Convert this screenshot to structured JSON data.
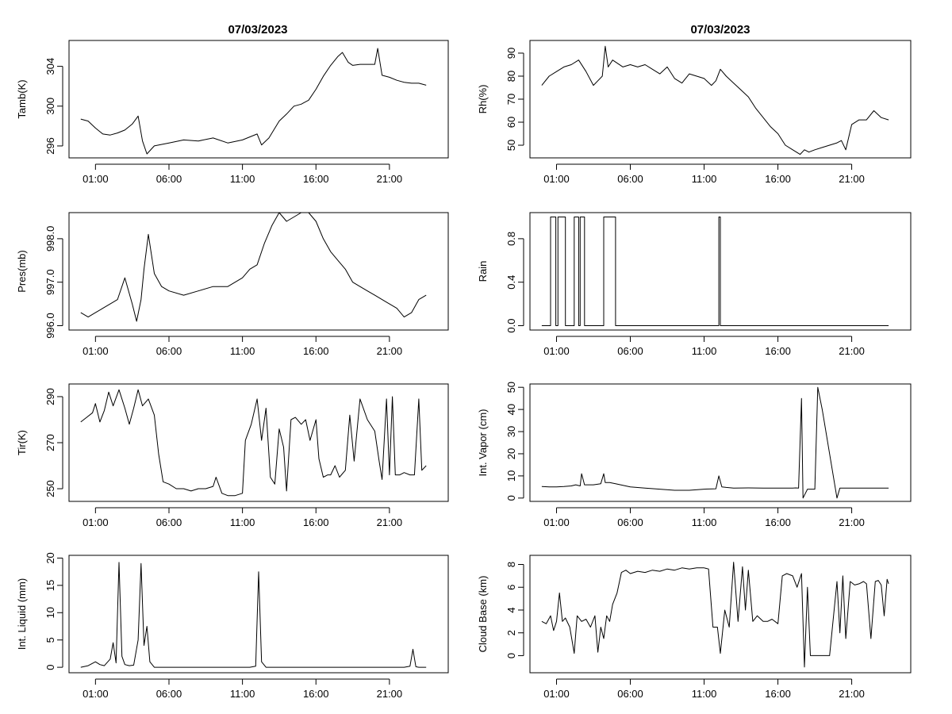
{
  "figure": {
    "titles": [
      "07/03/2023",
      "07/03/2023"
    ]
  },
  "chart_data": [
    {
      "type": "line",
      "id": "tamb",
      "ylabel": "Tamb(K)",
      "xlim": [
        -0.8,
        25
      ],
      "ylim": [
        294.8,
        306.6
      ],
      "xticks": [
        1,
        6,
        11,
        16,
        21
      ],
      "xtick_labels": [
        "01:00",
        "06:00",
        "11:00",
        "16:00",
        "21:00"
      ],
      "yticks": [
        296,
        300,
        304
      ],
      "ytick_labels": [
        "296",
        "300",
        "304"
      ],
      "x": [
        0,
        0.5,
        1,
        1.5,
        2,
        2.5,
        3,
        3.5,
        3.9,
        4.2,
        4.5,
        5,
        6,
        7,
        8,
        9,
        10,
        11,
        12,
        12.3,
        12.8,
        13.5,
        14,
        14.5,
        15,
        15.5,
        16,
        16.5,
        17,
        17.5,
        17.8,
        18.2,
        18.5,
        19,
        20,
        20.2,
        20.5,
        21,
        21.5,
        22,
        22.5,
        23,
        23.5
      ],
      "y": [
        298.7,
        298.5,
        297.8,
        297.2,
        297.1,
        297.3,
        297.6,
        298.2,
        299,
        296.5,
        295.2,
        296,
        296.3,
        296.6,
        296.5,
        296.8,
        296.3,
        296.6,
        297.2,
        296.1,
        296.8,
        298.5,
        299.2,
        300,
        300.2,
        300.6,
        301.7,
        303,
        304.1,
        305,
        305.4,
        304.4,
        304.1,
        304.2,
        304.2,
        305.8,
        303.1,
        302.9,
        302.6,
        302.4,
        302.3,
        302.3,
        302.1
      ]
    },
    {
      "type": "line",
      "id": "pres",
      "ylabel": "Pres(mb)",
      "xlim": [
        -0.8,
        25
      ],
      "ylim": [
        995.9,
        998.6
      ],
      "xticks": [
        1,
        6,
        11,
        16,
        21
      ],
      "xtick_labels": [
        "01:00",
        "06:00",
        "11:00",
        "16:00",
        "21:00"
      ],
      "yticks": [
        996.0,
        997.0,
        998.0
      ],
      "ytick_labels": [
        "996.0",
        "997.0",
        "998.0"
      ],
      "x": [
        0,
        0.5,
        1,
        1.5,
        2,
        2.5,
        3,
        3.5,
        3.8,
        4.1,
        4.3,
        4.6,
        5,
        5.5,
        6,
        7,
        8,
        9,
        10,
        11,
        11.5,
        12,
        12.5,
        13,
        13.5,
        14,
        14.5,
        15,
        15.5,
        16,
        16.5,
        17,
        17.5,
        18,
        18.5,
        19,
        19.5,
        20,
        20.5,
        21,
        21.5,
        22,
        22.5,
        23,
        23.5
      ],
      "y": [
        996.3,
        996.2,
        996.3,
        996.4,
        996.5,
        996.6,
        997.1,
        996.5,
        996.1,
        996.6,
        997.3,
        998.1,
        997.2,
        996.9,
        996.8,
        996.7,
        996.8,
        996.9,
        996.9,
        997.1,
        997.3,
        997.4,
        997.9,
        998.3,
        998.6,
        998.4,
        998.5,
        998.6,
        998.6,
        998.4,
        998.0,
        997.7,
        997.5,
        997.3,
        997.0,
        996.9,
        996.8,
        996.7,
        996.6,
        996.5,
        996.4,
        996.2,
        996.3,
        996.6,
        996.7
      ]
    },
    {
      "type": "line",
      "id": "tir",
      "ylabel": "Tir(K)",
      "xlim": [
        -0.8,
        25
      ],
      "ylim": [
        244.5,
        295.5
      ],
      "xticks": [
        1,
        6,
        11,
        16,
        21
      ],
      "xtick_labels": [
        "01:00",
        "06:00",
        "11:00",
        "16:00",
        "21:00"
      ],
      "yticks": [
        250,
        270,
        290
      ],
      "ytick_labels": [
        "250",
        "270",
        "290"
      ],
      "x": [
        0,
        0.4,
        0.8,
        1,
        1.3,
        1.6,
        1.9,
        2.2,
        2.6,
        3,
        3.3,
        3.6,
        3.9,
        4.2,
        4.6,
        5,
        5.3,
        5.6,
        6,
        6.5,
        7,
        7.5,
        8,
        8.5,
        9,
        9.2,
        9.6,
        10,
        10.5,
        11,
        11.2,
        11.6,
        12,
        12.3,
        12.6,
        12.9,
        13.2,
        13.5,
        13.8,
        14,
        14.3,
        14.6,
        15,
        15.3,
        15.6,
        16,
        16.2,
        16.5,
        16.8,
        17,
        17.3,
        17.6,
        18,
        18.3,
        18.6,
        19,
        19.5,
        20,
        20.3,
        20.5,
        20.8,
        21,
        21.2,
        21.4,
        21.7,
        22,
        22.4,
        22.7,
        23,
        23.2,
        23.5
      ],
      "y": [
        279,
        281,
        283,
        287,
        279,
        284,
        292,
        286,
        293,
        285,
        278,
        285,
        293,
        286,
        289,
        282,
        265,
        253,
        252,
        250,
        250,
        249,
        250,
        250,
        251,
        255,
        248,
        247,
        247,
        248,
        271,
        278,
        289,
        271,
        285,
        255,
        252,
        276,
        268,
        249,
        280,
        281,
        278,
        280,
        271,
        280,
        263,
        255,
        256,
        256,
        260,
        255,
        258,
        282,
        262,
        289,
        280,
        275,
        262,
        254,
        289,
        256,
        290,
        256,
        256,
        257,
        256,
        256,
        289,
        258,
        260
      ]
    },
    {
      "type": "line",
      "id": "liquid",
      "ylabel": "Int. Liquid (mm)",
      "xlim": [
        -0.8,
        25
      ],
      "ylim": [
        -1,
        20.5
      ],
      "xticks": [
        1,
        6,
        11,
        16,
        21
      ],
      "xtick_labels": [
        "01:00",
        "06:00",
        "11:00",
        "16:00",
        "21:00"
      ],
      "yticks": [
        0,
        5,
        10,
        15,
        20
      ],
      "ytick_labels": [
        "0",
        "5",
        "10",
        "15",
        "20"
      ],
      "x": [
        0,
        0.5,
        1,
        1.3,
        1.6,
        2,
        2.2,
        2.4,
        2.6,
        2.8,
        3,
        3.3,
        3.6,
        3.9,
        4.1,
        4.3,
        4.5,
        4.7,
        5,
        5.5,
        6,
        8,
        10,
        11.5,
        11.9,
        12.1,
        12.3,
        12.6,
        14,
        16,
        18,
        20,
        22,
        22.4,
        22.6,
        22.8,
        23,
        23.5
      ],
      "y": [
        0,
        0.3,
        1,
        0.5,
        0.3,
        1.5,
        4.5,
        0.8,
        19.2,
        2,
        0.5,
        0.3,
        0.4,
        5,
        19,
        4,
        7.5,
        1,
        0,
        0,
        0,
        0,
        0,
        0,
        0.2,
        17.5,
        1,
        0,
        0,
        0,
        0,
        0,
        0,
        0.2,
        3.3,
        0.1,
        0,
        0
      ]
    },
    {
      "type": "line",
      "id": "rh",
      "ylabel": "Rh(%)",
      "xlim": [
        -0.8,
        25
      ],
      "ylim": [
        44.5,
        95.5
      ],
      "xticks": [
        1,
        6,
        11,
        16,
        21
      ],
      "xtick_labels": [
        "01:00",
        "06:00",
        "11:00",
        "16:00",
        "21:00"
      ],
      "yticks": [
        50,
        60,
        70,
        80,
        90
      ],
      "ytick_labels": [
        "50",
        "60",
        "70",
        "80",
        "90"
      ],
      "x": [
        0,
        0.5,
        1,
        1.5,
        2,
        2.5,
        3,
        3.5,
        3.8,
        4.1,
        4.3,
        4.5,
        4.8,
        5.5,
        6,
        6.5,
        7,
        7.5,
        8,
        8.5,
        9,
        9.5,
        10,
        10.5,
        11,
        11.5,
        11.8,
        12.1,
        12.5,
        13,
        13.5,
        14,
        14.5,
        15,
        15.5,
        16,
        16.5,
        17,
        17.5,
        17.8,
        18.1,
        18.5,
        19,
        19.5,
        20,
        20.3,
        20.6,
        21,
        21.5,
        22,
        22.5,
        23,
        23.5
      ],
      "y": [
        76,
        80,
        82,
        84,
        85,
        87,
        82,
        76,
        78,
        80,
        93,
        84,
        87,
        84,
        85,
        84,
        85,
        83,
        81,
        84,
        79,
        77,
        81,
        80,
        79,
        76,
        78,
        83,
        80,
        77,
        74,
        71,
        66,
        62,
        58,
        55,
        50,
        48,
        46,
        48,
        47,
        48,
        49,
        50,
        51,
        52,
        48,
        59,
        61,
        61,
        65,
        62,
        61
      ]
    },
    {
      "type": "line",
      "id": "rain",
      "ylabel": "Rain",
      "xlim": [
        -0.8,
        25
      ],
      "ylim": [
        -0.04,
        1.04
      ],
      "xticks": [
        1,
        6,
        11,
        16,
        21
      ],
      "xtick_labels": [
        "01:00",
        "06:00",
        "11:00",
        "16:00",
        "21:00"
      ],
      "yticks": [
        0.0,
        0.4,
        0.8
      ],
      "ytick_labels": [
        "0.0",
        "0.4",
        "0.8"
      ],
      "x": [
        0,
        0.6,
        0.6,
        0.95,
        0.95,
        1.1,
        1.1,
        1.6,
        1.6,
        2.2,
        2.2,
        2.5,
        2.5,
        2.6,
        2.6,
        2.9,
        2.9,
        3.1,
        3.1,
        3.5,
        3.5,
        4.2,
        4.2,
        5.0,
        5.0,
        12.0,
        12.0,
        12.1,
        12.1,
        23.5
      ],
      "y": [
        0,
        0,
        1,
        1,
        0,
        0,
        1,
        1,
        0,
        0,
        1,
        1,
        0,
        0,
        1,
        1,
        0,
        0,
        0,
        0,
        0,
        0,
        1,
        1,
        0,
        0,
        1,
        1,
        0,
        0
      ]
    },
    {
      "type": "line",
      "id": "vapor",
      "ylabel": "Int. Vapor (cm)",
      "xlim": [
        -0.8,
        25
      ],
      "ylim": [
        -1.5,
        51.5
      ],
      "xticks": [
        1,
        6,
        11,
        16,
        21
      ],
      "xtick_labels": [
        "01:00",
        "06:00",
        "11:00",
        "16:00",
        "21:00"
      ],
      "yticks": [
        0,
        10,
        20,
        30,
        40,
        50
      ],
      "ytick_labels": [
        "0",
        "10",
        "20",
        "30",
        "40",
        "50"
      ],
      "x": [
        0,
        0.5,
        1,
        1.5,
        2,
        2.3,
        2.6,
        2.7,
        2.9,
        3.5,
        4,
        4.2,
        4.3,
        4.6,
        5,
        6,
        7,
        8,
        9,
        10,
        11,
        11.8,
        12,
        12.2,
        12.5,
        13,
        14,
        15,
        16,
        17,
        17.2,
        17.4,
        17.6,
        17.7,
        18,
        18.5,
        18.7,
        19,
        20,
        20.2,
        20.5,
        21,
        22,
        23,
        23.5
      ],
      "y": [
        5.2,
        5,
        5,
        5.2,
        5.5,
        6,
        5.5,
        11,
        6,
        6,
        6.5,
        11,
        7,
        7,
        6.5,
        5,
        4.5,
        4,
        3.5,
        3.5,
        4,
        4.2,
        10,
        5,
        4.8,
        4.5,
        4.6,
        4.5,
        4.5,
        4.5,
        4.6,
        4.5,
        45,
        0,
        4,
        4,
        50,
        40,
        0,
        4.5,
        4.5,
        4.5,
        4.5,
        4.5,
        4.5
      ]
    },
    {
      "type": "line",
      "id": "cloudbase",
      "ylabel": "Cloud Base (km)",
      "xlim": [
        -0.8,
        25
      ],
      "ylim": [
        -1.5,
        8.8
      ],
      "xticks": [
        1,
        6,
        11,
        16,
        21
      ],
      "xtick_labels": [
        "01:00",
        "06:00",
        "11:00",
        "16:00",
        "21:00"
      ],
      "yticks": [
        0,
        2,
        4,
        6,
        8
      ],
      "ytick_labels": [
        "0",
        "2",
        "4",
        "6",
        "8"
      ],
      "x": [
        0,
        0.3,
        0.6,
        0.8,
        1,
        1.2,
        1.4,
        1.6,
        1.9,
        2.2,
        2.4,
        2.7,
        3,
        3.3,
        3.6,
        3.8,
        4,
        4.2,
        4.4,
        4.6,
        4.8,
        5.1,
        5.4,
        5.7,
        6,
        6.5,
        7,
        7.5,
        8,
        8.5,
        9,
        9.5,
        10,
        10.5,
        11,
        11.3,
        11.6,
        11.9,
        12.1,
        12.4,
        12.7,
        13,
        13.3,
        13.6,
        13.8,
        14,
        14.3,
        14.6,
        15,
        15.3,
        15.6,
        16,
        16.3,
        16.6,
        17,
        17.3,
        17.6,
        17.8,
        18,
        18.2,
        18.5,
        19,
        19.5,
        20,
        20.2,
        20.4,
        20.6,
        20.9,
        21.2,
        21.5,
        21.8,
        22,
        22.3,
        22.6,
        22.8,
        23,
        23.2,
        23.4,
        23.5
      ],
      "y": [
        3,
        2.8,
        3.5,
        2.2,
        3,
        5.5,
        3,
        3.3,
        2.5,
        0.2,
        3.5,
        3,
        3.2,
        2.5,
        3.5,
        0.3,
        2.5,
        1.5,
        3.5,
        3,
        4.5,
        5.5,
        7.3,
        7.5,
        7.2,
        7.4,
        7.3,
        7.5,
        7.4,
        7.6,
        7.5,
        7.7,
        7.6,
        7.7,
        7.7,
        7.6,
        2.5,
        2.5,
        0.2,
        4,
        2.5,
        8.2,
        3,
        7.8,
        4,
        7.5,
        3,
        3.5,
        3,
        3,
        3.2,
        2.8,
        7,
        7.2,
        7,
        6,
        7.2,
        -1,
        6,
        0,
        0,
        0,
        0,
        6.5,
        2,
        7,
        1.5,
        6.5,
        6.2,
        6.3,
        6.5,
        6.3,
        1.5,
        6.5,
        6.6,
        6.2,
        3.5,
        6.7,
        6.3
      ]
    }
  ]
}
